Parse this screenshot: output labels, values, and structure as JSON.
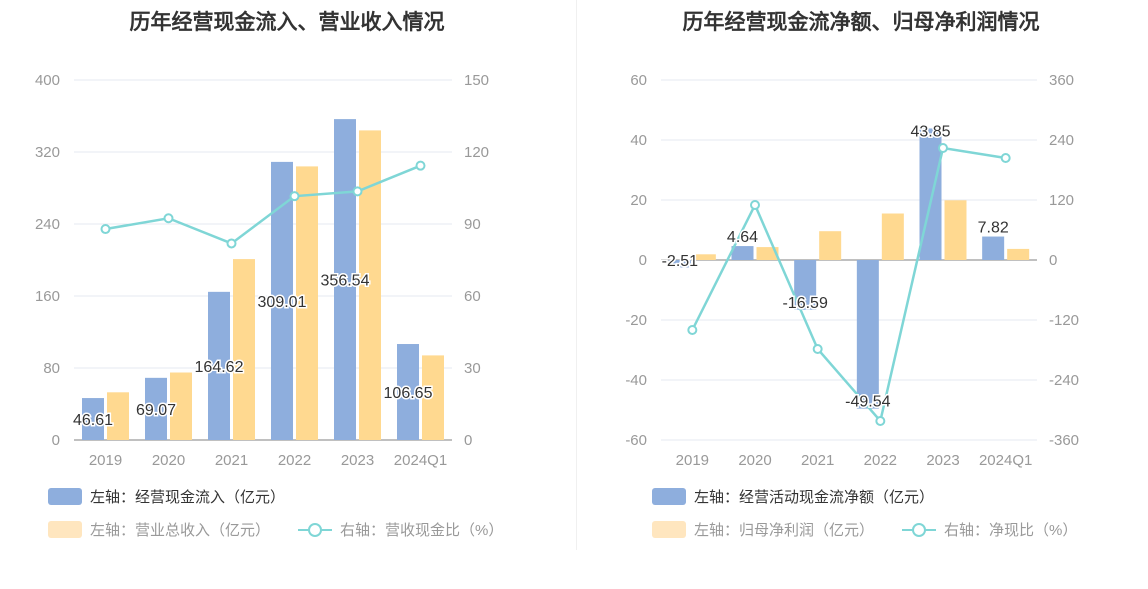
{
  "chart_data": [
    {
      "type": "bar",
      "title": "历年经营现金流入、营业收入情况",
      "categories": [
        "2019",
        "2020",
        "2021",
        "2022",
        "2023",
        "2024Q1"
      ],
      "left_axis": {
        "min": 0,
        "max": 400,
        "ticks": [
          "0",
          "80",
          "160",
          "240",
          "320",
          "400"
        ]
      },
      "right_axis": {
        "min": 0,
        "max": 150,
        "ticks": [
          "0",
          "30",
          "60",
          "90",
          "120",
          "150"
        ]
      },
      "series": [
        {
          "name": "左轴：经营现金流入（亿元）",
          "kind": "bar",
          "axis": "left",
          "color": "#8eaedd",
          "values": [
            46.61,
            69.07,
            164.62,
            309.01,
            356.54,
            106.65
          ],
          "labels": [
            "46.61",
            "69.07",
            "164.62",
            "309.01",
            "356.54",
            "106.65"
          ]
        },
        {
          "name": "左轴：营业总收入（亿元）",
          "kind": "bar",
          "axis": "left",
          "color": "#ffd990",
          "values": [
            53,
            75,
            201,
            304,
            344,
            94
          ]
        },
        {
          "name": "右轴：营收现金比（%）",
          "kind": "line",
          "axis": "right",
          "color": "#7fd6d6",
          "values": [
            87.9,
            92.4,
            81.9,
            101.6,
            103.6,
            114.3
          ]
        }
      ]
    },
    {
      "type": "bar",
      "title": "历年经营现金流净额、归母净利润情况",
      "categories": [
        "2019",
        "2020",
        "2021",
        "2022",
        "2023",
        "2024Q1"
      ],
      "left_axis": {
        "min": -60,
        "max": 60,
        "ticks": [
          "-60",
          "-40",
          "-20",
          "0",
          "20",
          "40",
          "60"
        ]
      },
      "right_axis": {
        "min": -360,
        "max": 360,
        "ticks": [
          "-360",
          "-240",
          "-120",
          "0",
          "120",
          "240",
          "360"
        ]
      },
      "series": [
        {
          "name": "左轴：经营活动现金流净额（亿元）",
          "kind": "bar",
          "axis": "left",
          "color": "#8eaedd",
          "values": [
            -2.51,
            4.64,
            -16.59,
            -49.54,
            43.85,
            7.82
          ],
          "labels": [
            "-2.51",
            "4.64",
            "-16.59",
            "-49.54",
            "43.85",
            "7.82"
          ]
        },
        {
          "name": "左轴：归母净利润（亿元）",
          "kind": "bar",
          "axis": "left",
          "color": "#ffd990",
          "values": [
            1.9,
            4.3,
            9.6,
            15.5,
            19.9,
            3.7
          ]
        },
        {
          "name": "右轴：净现比（%）",
          "kind": "line",
          "axis": "right",
          "color": "#7fd6d6",
          "values": [
            -140,
            110,
            -178,
            -322,
            224,
            204
          ]
        }
      ]
    }
  ]
}
